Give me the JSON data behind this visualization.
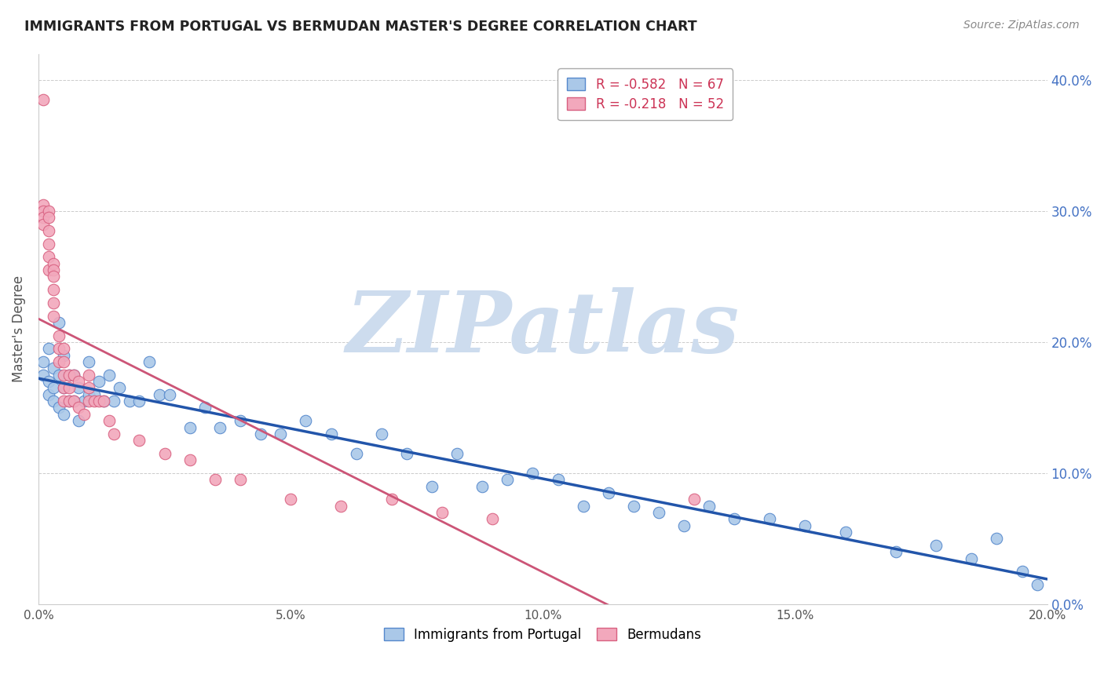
{
  "title": "IMMIGRANTS FROM PORTUGAL VS BERMUDAN MASTER'S DEGREE CORRELATION CHART",
  "source": "Source: ZipAtlas.com",
  "ylabel": "Master's Degree",
  "xlim": [
    0.0,
    0.2
  ],
  "ylim": [
    0.0,
    0.42
  ],
  "xticks": [
    0.0,
    0.05,
    0.1,
    0.15,
    0.2
  ],
  "xtick_labels": [
    "0.0%",
    "5.0%",
    "10.0%",
    "15.0%",
    "20.0%"
  ],
  "yticks": [
    0.0,
    0.1,
    0.2,
    0.3,
    0.4
  ],
  "ytick_labels": [
    "0.0%",
    "10.0%",
    "20.0%",
    "30.0%",
    "40.0%"
  ],
  "blue_R": -0.582,
  "blue_N": 67,
  "pink_R": -0.218,
  "pink_N": 52,
  "blue_color": "#aac8e8",
  "pink_color": "#f2a8bc",
  "blue_edge_color": "#5588cc",
  "pink_edge_color": "#d86080",
  "blue_line_color": "#2255aa",
  "pink_line_color": "#cc5577",
  "watermark_color": "#cddcee",
  "blue_scatter_x": [
    0.001,
    0.001,
    0.002,
    0.002,
    0.002,
    0.003,
    0.003,
    0.003,
    0.004,
    0.004,
    0.004,
    0.005,
    0.005,
    0.005,
    0.006,
    0.006,
    0.007,
    0.007,
    0.008,
    0.008,
    0.009,
    0.01,
    0.01,
    0.011,
    0.012,
    0.013,
    0.014,
    0.015,
    0.016,
    0.018,
    0.02,
    0.022,
    0.024,
    0.026,
    0.03,
    0.033,
    0.036,
    0.04,
    0.044,
    0.048,
    0.053,
    0.058,
    0.063,
    0.068,
    0.073,
    0.078,
    0.083,
    0.088,
    0.093,
    0.098,
    0.103,
    0.108,
    0.113,
    0.118,
    0.123,
    0.128,
    0.133,
    0.138,
    0.145,
    0.152,
    0.16,
    0.17,
    0.178,
    0.185,
    0.19,
    0.195,
    0.198
  ],
  "blue_scatter_y": [
    0.185,
    0.175,
    0.195,
    0.17,
    0.16,
    0.18,
    0.165,
    0.155,
    0.215,
    0.175,
    0.15,
    0.19,
    0.165,
    0.145,
    0.175,
    0.155,
    0.175,
    0.155,
    0.165,
    0.14,
    0.155,
    0.185,
    0.16,
    0.16,
    0.17,
    0.155,
    0.175,
    0.155,
    0.165,
    0.155,
    0.155,
    0.185,
    0.16,
    0.16,
    0.135,
    0.15,
    0.135,
    0.14,
    0.13,
    0.13,
    0.14,
    0.13,
    0.115,
    0.13,
    0.115,
    0.09,
    0.115,
    0.09,
    0.095,
    0.1,
    0.095,
    0.075,
    0.085,
    0.075,
    0.07,
    0.06,
    0.075,
    0.065,
    0.065,
    0.06,
    0.055,
    0.04,
    0.045,
    0.035,
    0.05,
    0.025,
    0.015
  ],
  "pink_scatter_x": [
    0.001,
    0.001,
    0.001,
    0.001,
    0.001,
    0.002,
    0.002,
    0.002,
    0.002,
    0.002,
    0.002,
    0.003,
    0.003,
    0.003,
    0.003,
    0.003,
    0.003,
    0.004,
    0.004,
    0.004,
    0.005,
    0.005,
    0.005,
    0.005,
    0.005,
    0.006,
    0.006,
    0.006,
    0.007,
    0.007,
    0.008,
    0.008,
    0.009,
    0.01,
    0.01,
    0.01,
    0.011,
    0.012,
    0.013,
    0.014,
    0.015,
    0.02,
    0.025,
    0.03,
    0.035,
    0.04,
    0.05,
    0.06,
    0.07,
    0.08,
    0.09,
    0.13
  ],
  "pink_scatter_y": [
    0.385,
    0.305,
    0.3,
    0.295,
    0.29,
    0.3,
    0.295,
    0.285,
    0.275,
    0.265,
    0.255,
    0.26,
    0.255,
    0.25,
    0.24,
    0.23,
    0.22,
    0.205,
    0.195,
    0.185,
    0.195,
    0.185,
    0.175,
    0.165,
    0.155,
    0.175,
    0.165,
    0.155,
    0.175,
    0.155,
    0.17,
    0.15,
    0.145,
    0.175,
    0.165,
    0.155,
    0.155,
    0.155,
    0.155,
    0.14,
    0.13,
    0.125,
    0.115,
    0.11,
    0.095,
    0.095,
    0.08,
    0.075,
    0.08,
    0.07,
    0.065,
    0.08
  ]
}
